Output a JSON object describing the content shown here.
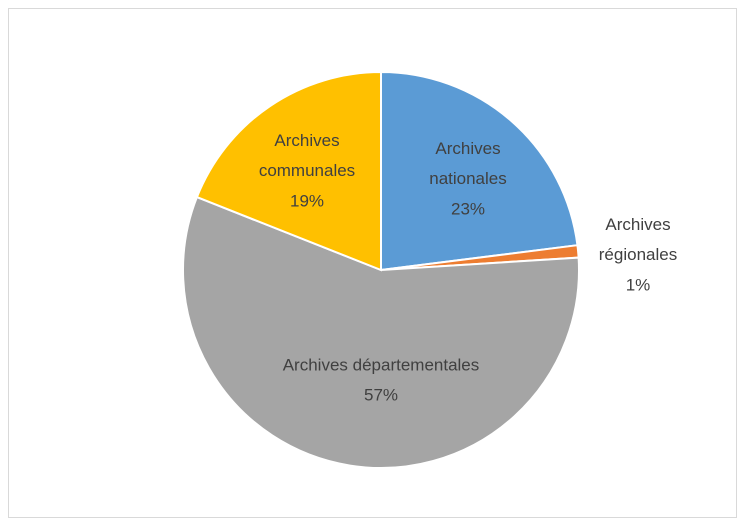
{
  "chart_data": {
    "type": "pie",
    "categories": [
      "Archives nationales",
      "Archives régionales",
      "Archives départementales",
      "Archives communales"
    ],
    "values": [
      23,
      1,
      57,
      19
    ],
    "value_labels": [
      "23%",
      "1%",
      "57%",
      "19%"
    ],
    "colors": [
      "#5b9bd5",
      "#ed7d31",
      "#a5a5a5",
      "#ffc000"
    ]
  }
}
